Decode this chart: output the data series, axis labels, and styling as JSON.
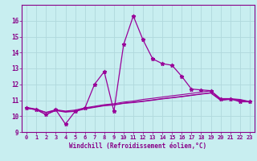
{
  "xlabel": "Windchill (Refroidissement éolien,°C)",
  "bg_color": "#c8eef0",
  "grid_color": "#b0d8dc",
  "line_color": "#990099",
  "xlim": [
    -0.5,
    23.5
  ],
  "ylim": [
    9,
    17
  ],
  "yticks": [
    9,
    10,
    11,
    12,
    13,
    14,
    15,
    16
  ],
  "xticks": [
    0,
    1,
    2,
    3,
    4,
    5,
    6,
    7,
    8,
    9,
    10,
    11,
    12,
    13,
    14,
    15,
    16,
    17,
    18,
    19,
    20,
    21,
    22,
    23
  ],
  "series": [
    [
      10.5,
      10.4,
      10.1,
      10.4,
      9.5,
      10.3,
      10.5,
      12.0,
      12.8,
      10.3,
      14.5,
      16.3,
      14.8,
      13.6,
      13.3,
      13.2,
      12.5,
      11.7,
      11.65,
      11.6,
      11.1,
      11.1,
      10.9,
      10.9
    ],
    [
      10.5,
      10.4,
      10.1,
      10.35,
      10.25,
      10.3,
      10.45,
      10.55,
      10.65,
      10.7,
      10.8,
      10.85,
      10.92,
      11.0,
      11.08,
      11.15,
      11.22,
      11.3,
      11.38,
      11.45,
      11.0,
      11.05,
      11.0,
      10.88
    ],
    [
      10.52,
      10.42,
      10.22,
      10.37,
      10.28,
      10.33,
      10.48,
      10.58,
      10.68,
      10.72,
      10.82,
      10.88,
      10.95,
      11.02,
      11.1,
      11.17,
      11.24,
      11.32,
      11.4,
      11.47,
      11.02,
      11.07,
      11.02,
      10.9
    ],
    [
      10.55,
      10.44,
      10.24,
      10.4,
      10.32,
      10.38,
      10.52,
      10.62,
      10.72,
      10.78,
      10.88,
      10.95,
      11.05,
      11.12,
      11.2,
      11.28,
      11.35,
      11.43,
      11.52,
      11.58,
      11.05,
      11.1,
      11.05,
      10.92
    ]
  ]
}
